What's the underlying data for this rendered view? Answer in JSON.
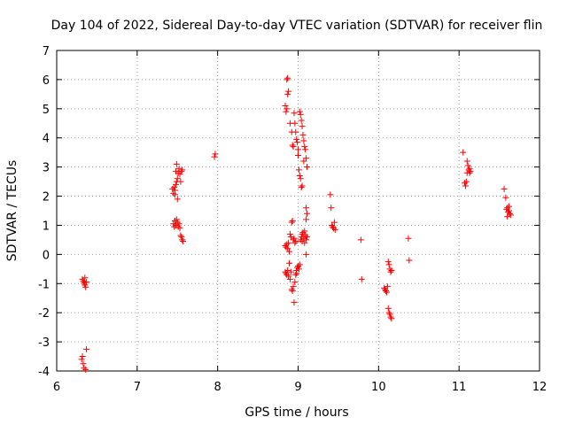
{
  "chart_data": {
    "type": "scatter",
    "title": "Day 104 of 2022, Sidereal Day-to-day VTEC variation (SDTVAR) for receiver flin",
    "xlabel": "GPS time / hours",
    "ylabel": "SDTVAR / TECUs",
    "xlim": [
      6,
      12
    ],
    "ylim": [
      -4,
      7
    ],
    "xticks": [
      "6",
      "7",
      "8",
      "9",
      "10",
      "11",
      "12"
    ],
    "yticks": [
      "-4",
      "-3",
      "-2",
      "-1",
      "0",
      "1",
      "2",
      "3",
      "4",
      "5",
      "6",
      "7"
    ],
    "grid": true,
    "marker": "+",
    "color": "#ff0000",
    "series": [
      {
        "name": "SDTVAR",
        "points": [
          [
            6.32,
            -0.85
          ],
          [
            6.33,
            -0.92
          ],
          [
            6.34,
            -0.98
          ],
          [
            6.35,
            -1.05
          ],
          [
            6.36,
            -1.12
          ],
          [
            6.35,
            -0.8
          ],
          [
            6.37,
            -0.95
          ],
          [
            6.31,
            -3.6
          ],
          [
            6.32,
            -3.5
          ],
          [
            6.33,
            -3.75
          ],
          [
            6.34,
            -3.9
          ],
          [
            6.36,
            -3.95
          ],
          [
            6.37,
            -3.25
          ],
          [
            7.44,
            2.25
          ],
          [
            7.45,
            2.1
          ],
          [
            7.46,
            2.3
          ],
          [
            7.47,
            2.2
          ],
          [
            7.48,
            2.4
          ],
          [
            7.47,
            2.05
          ],
          [
            7.49,
            2.5
          ],
          [
            7.5,
            2.6
          ],
          [
            7.48,
            2.85
          ],
          [
            7.49,
            3.1
          ],
          [
            7.51,
            2.8
          ],
          [
            7.52,
            2.95
          ],
          [
            7.53,
            2.75
          ],
          [
            7.55,
            2.85
          ],
          [
            7.56,
            2.9
          ],
          [
            7.54,
            2.5
          ],
          [
            7.5,
            1.9
          ],
          [
            7.45,
            1.05
          ],
          [
            7.46,
            0.95
          ],
          [
            7.47,
            1.15
          ],
          [
            7.48,
            1.0
          ],
          [
            7.49,
            1.2
          ],
          [
            7.5,
            1.1
          ],
          [
            7.51,
            0.95
          ],
          [
            7.52,
            1.05
          ],
          [
            7.53,
            0.9
          ],
          [
            7.55,
            0.6
          ],
          [
            7.56,
            0.5
          ],
          [
            7.57,
            0.45
          ],
          [
            7.54,
            0.65
          ],
          [
            7.96,
            3.35
          ],
          [
            7.97,
            3.45
          ],
          [
            8.84,
            5.1
          ],
          [
            8.85,
            4.9
          ],
          [
            8.86,
            5.0
          ],
          [
            8.87,
            5.5
          ],
          [
            8.88,
            5.6
          ],
          [
            8.86,
            6.0
          ],
          [
            8.87,
            6.05
          ],
          [
            8.9,
            4.5
          ],
          [
            8.92,
            4.2
          ],
          [
            8.93,
            3.75
          ],
          [
            8.94,
            3.7
          ],
          [
            8.95,
            4.85
          ],
          [
            8.96,
            4.5
          ],
          [
            8.97,
            4.2
          ],
          [
            8.98,
            3.95
          ],
          [
            8.99,
            3.85
          ],
          [
            9.0,
            3.6
          ],
          [
            9.0,
            3.4
          ],
          [
            9.01,
            2.9
          ],
          [
            9.02,
            2.7
          ],
          [
            9.03,
            2.6
          ],
          [
            9.04,
            2.3
          ],
          [
            9.05,
            2.35
          ],
          [
            9.02,
            4.9
          ],
          [
            9.03,
            4.8
          ],
          [
            9.04,
            4.6
          ],
          [
            9.05,
            4.4
          ],
          [
            9.06,
            4.1
          ],
          [
            9.07,
            3.9
          ],
          [
            9.08,
            3.7
          ],
          [
            9.09,
            3.6
          ],
          [
            9.1,
            3.3
          ],
          [
            9.11,
            3.0
          ],
          [
            9.07,
            3.2
          ],
          [
            9.1,
            1.6
          ],
          [
            9.11,
            1.4
          ],
          [
            9.1,
            1.2
          ],
          [
            8.84,
            0.3
          ],
          [
            8.85,
            0.25
          ],
          [
            8.86,
            0.35
          ],
          [
            8.87,
            0.2
          ],
          [
            8.88,
            0.4
          ],
          [
            8.89,
            0.1
          ],
          [
            8.9,
            0.7
          ],
          [
            8.91,
            0.6
          ],
          [
            8.92,
            1.1
          ],
          [
            8.93,
            1.15
          ],
          [
            8.94,
            0.5
          ],
          [
            8.95,
            0.55
          ],
          [
            8.96,
            0.4
          ],
          [
            8.97,
            0.45
          ],
          [
            8.84,
            -0.6
          ],
          [
            8.85,
            -0.65
          ],
          [
            8.86,
            -0.7
          ],
          [
            8.87,
            -0.55
          ],
          [
            8.88,
            -0.75
          ],
          [
            8.89,
            -0.3
          ],
          [
            8.9,
            -0.85
          ],
          [
            8.91,
            -0.6
          ],
          [
            8.92,
            -1.2
          ],
          [
            8.93,
            -1.25
          ],
          [
            8.94,
            -1.1
          ],
          [
            8.95,
            -1.65
          ],
          [
            8.96,
            -0.95
          ],
          [
            8.97,
            -0.7
          ],
          [
            8.98,
            -0.55
          ],
          [
            8.99,
            -0.45
          ],
          [
            9.0,
            -0.4
          ],
          [
            9.01,
            -0.5
          ],
          [
            9.02,
            -0.35
          ],
          [
            8.98,
            -0.65
          ],
          [
            9.03,
            0.5
          ],
          [
            9.04,
            0.6
          ],
          [
            9.05,
            0.7
          ],
          [
            9.06,
            0.75
          ],
          [
            9.07,
            0.55
          ],
          [
            9.08,
            0.8
          ],
          [
            9.09,
            0.65
          ],
          [
            9.1,
            0.5
          ],
          [
            9.11,
            0.6
          ],
          [
            9.05,
            0.45
          ],
          [
            9.08,
            0.4
          ],
          [
            9.1,
            0.0
          ],
          [
            9.4,
            2.05
          ],
          [
            9.41,
            1.6
          ],
          [
            9.42,
            1.0
          ],
          [
            9.43,
            0.95
          ],
          [
            9.44,
            0.9
          ],
          [
            9.45,
            1.1
          ],
          [
            9.46,
            0.85
          ],
          [
            9.78,
            0.5
          ],
          [
            9.79,
            -0.85
          ],
          [
            10.07,
            -1.15
          ],
          [
            10.08,
            -1.2
          ],
          [
            10.09,
            -1.25
          ],
          [
            10.1,
            -1.3
          ],
          [
            10.11,
            -1.1
          ],
          [
            10.12,
            -0.25
          ],
          [
            10.13,
            -0.35
          ],
          [
            10.14,
            -0.5
          ],
          [
            10.15,
            -0.6
          ],
          [
            10.16,
            -0.55
          ],
          [
            10.12,
            -1.85
          ],
          [
            10.13,
            -2.0
          ],
          [
            10.14,
            -2.05
          ],
          [
            10.15,
            -2.15
          ],
          [
            10.16,
            -2.2
          ],
          [
            10.37,
            0.55
          ],
          [
            10.38,
            -0.2
          ],
          [
            11.05,
            3.5
          ],
          [
            11.07,
            2.45
          ],
          [
            11.08,
            2.35
          ],
          [
            11.09,
            2.5
          ],
          [
            11.1,
            3.2
          ],
          [
            11.11,
            3.05
          ],
          [
            11.12,
            2.9
          ],
          [
            11.13,
            2.95
          ],
          [
            11.14,
            2.85
          ],
          [
            11.1,
            2.8
          ],
          [
            11.13,
            2.8
          ],
          [
            11.56,
            2.25
          ],
          [
            11.58,
            1.95
          ],
          [
            11.59,
            1.55
          ],
          [
            11.6,
            1.6
          ],
          [
            11.61,
            1.45
          ],
          [
            11.62,
            1.5
          ],
          [
            11.63,
            1.4
          ],
          [
            11.64,
            1.35
          ],
          [
            11.6,
            1.3
          ],
          [
            11.62,
            1.65
          ]
        ]
      }
    ]
  }
}
